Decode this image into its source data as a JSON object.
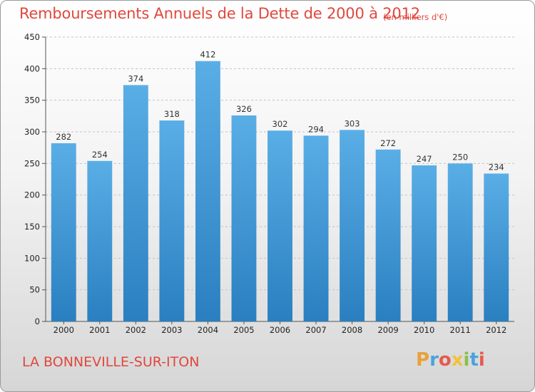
{
  "header": {
    "title": "Remboursements Annuels de la Dette de 2000 à 2012",
    "unit": "(en milliers d'€)"
  },
  "footer": {
    "commune": "LA BONNEVILLE-SUR-ITON",
    "brand": {
      "letters": [
        "P",
        "r",
        "o",
        "x",
        "i",
        "t",
        "i"
      ],
      "letter_colors": [
        "#e8a13a",
        "#4aa3df",
        "#e65a4f",
        "#f0c23a",
        "#8cc04a",
        "#4aa3df",
        "#e65a4f"
      ]
    }
  },
  "colors": {
    "bar_light": "#5aaee6",
    "bar_dark": "#2a7fc0",
    "text_accent": "#e0483d"
  },
  "chart_data": {
    "type": "bar",
    "categories": [
      "2000",
      "2001",
      "2002",
      "2003",
      "2004",
      "2005",
      "2006",
      "2007",
      "2008",
      "2009",
      "2010",
      "2011",
      "2012"
    ],
    "values": [
      282,
      254,
      374,
      318,
      412,
      326,
      302,
      294,
      303,
      272,
      247,
      250,
      234
    ],
    "ylim": [
      0,
      450
    ],
    "yticks": [
      0,
      50,
      100,
      150,
      200,
      250,
      300,
      350,
      400,
      450
    ],
    "grid": true,
    "data_labels": true
  }
}
